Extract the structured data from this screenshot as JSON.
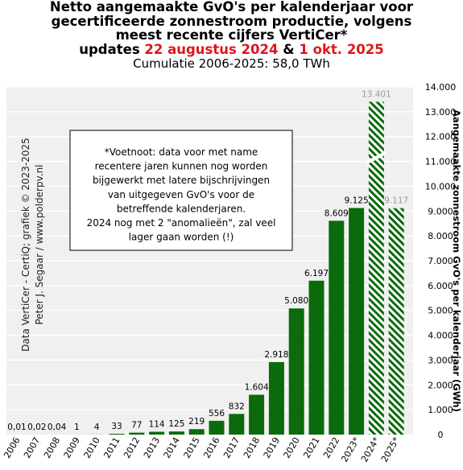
{
  "title": {
    "line1": "Netto aangemaakte GvO's per kalenderjaar voor",
    "line2": "gecertificeerde zonnestroom productie, volgens",
    "line3": "meest recente cijfers VertiCer*",
    "updates_prefix": "updates",
    "date1": "22 augustus 2024",
    "ampersand": "&",
    "date2": "1 okt. 2025",
    "subtitle": "Cumulatie 2006-2025:  58,0 TWh"
  },
  "credit": {
    "line1": "Data VertiCer - CertiQ; grafiek © 2023-2025",
    "line2": "Peter J. Segaar / www.polderpv.nl"
  },
  "footnote": {
    "lines": [
      "*Voetnoot: data voor met name",
      "recentere jaren kunnen nog worden",
      "bijgewerkt met latere bijschrijvingen",
      "van uitgegeven GvO's  voor de",
      "betreffende kalenderjaren.",
      "2024 nog met 2 \"anomalieën\",  zal veel",
      "lager gaan worden (!)"
    ]
  },
  "colors": {
    "bar": "#0b6a0b",
    "plot_bg": "#f0f0f0",
    "grid": "#ffffff",
    "title_red": "#e0161b",
    "hatch_label": "#9a9a9a"
  },
  "chart_data": {
    "type": "bar",
    "categories": [
      "2006",
      "2007",
      "2008",
      "2009",
      "2010",
      "2011",
      "2012",
      "2013",
      "2014",
      "2015",
      "2016",
      "2017",
      "2018",
      "2019",
      "2020",
      "2021",
      "2022",
      "2023*",
      "2024*",
      "2025*"
    ],
    "values": [
      0.01,
      0.02,
      0.04,
      1,
      4,
      33,
      77,
      114,
      125,
      219,
      556,
      832,
      1604,
      2918,
      5080,
      6197,
      8609,
      9125,
      13401,
      9117
    ],
    "labels": [
      "0,01",
      "0,02",
      "0,04",
      "1",
      "4",
      "33",
      "77",
      "114",
      "125",
      "219",
      "556",
      "832",
      "1.604",
      "2.918",
      "5.080",
      "6.197",
      "8.609",
      "9.125",
      "13.401",
      "9.117"
    ],
    "styles": [
      "solid",
      "solid",
      "solid",
      "solid",
      "solid",
      "solid",
      "solid",
      "solid",
      "solid",
      "solid",
      "solid",
      "solid",
      "solid",
      "solid",
      "solid",
      "solid",
      "solid",
      "solid",
      "hatched-broken",
      "hatched"
    ],
    "ylabel": "Aangemaakte zonnestroom GvO's per kalenderjaar (GWh)",
    "ylim": [
      0,
      14000
    ],
    "yticks": [
      0,
      1000,
      2000,
      3000,
      4000,
      5000,
      6000,
      7000,
      8000,
      9000,
      10000,
      11000,
      12000,
      13000,
      14000
    ],
    "ytick_labels": [
      "0",
      "1.000",
      "2.000",
      "3.000",
      "4.000",
      "5.000",
      "6.000",
      "7.000",
      "8.000",
      "9.000",
      "10.000",
      "11.000",
      "12.000",
      "13.000",
      "14.000"
    ],
    "y_axis_position": "right",
    "grid": true
  }
}
